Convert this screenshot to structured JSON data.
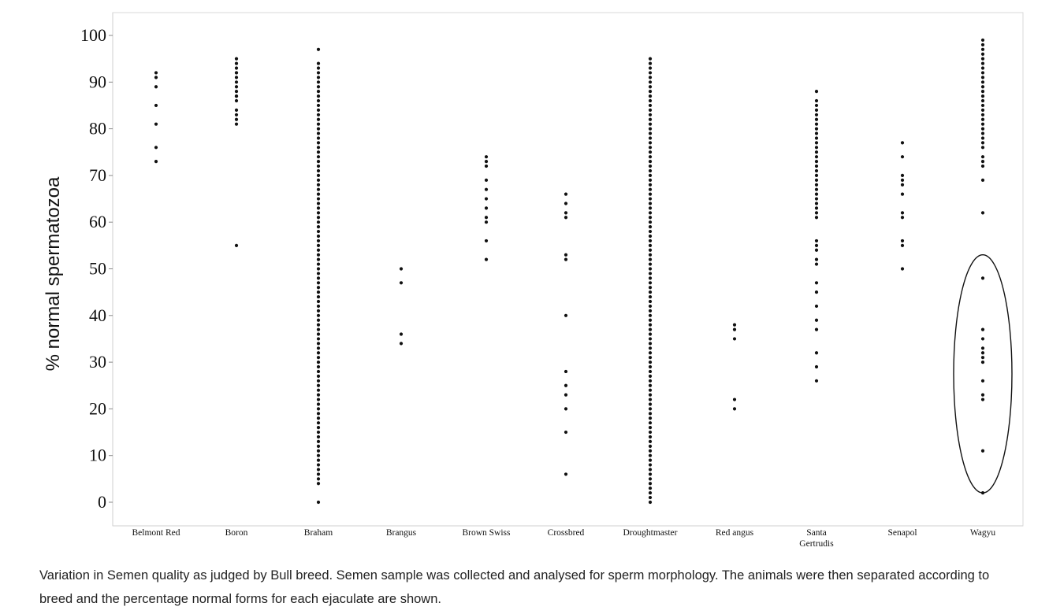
{
  "chart_data": {
    "type": "scatter",
    "style": "dot-strip",
    "ylabel": "% normal spermatozoa",
    "xlabel": "",
    "ylim": [
      0,
      100
    ],
    "yticks": [
      "0",
      "10",
      "20",
      "30",
      "40",
      "50",
      "60",
      "70",
      "80",
      "90",
      "100"
    ],
    "grid": false,
    "point_color": "#111111",
    "categories": [
      {
        "label": "Belmont Red",
        "values": [
          92,
          91,
          89,
          85,
          81,
          76,
          73
        ]
      },
      {
        "label": "Boron",
        "values": [
          95,
          94,
          93,
          92,
          92,
          91,
          90,
          89,
          88,
          87,
          87,
          86,
          84,
          83,
          82,
          81,
          55
        ]
      },
      {
        "label": "Braham",
        "values": [
          97,
          94,
          93,
          92,
          91,
          90,
          89,
          88,
          87,
          86,
          85,
          84,
          83,
          82,
          81,
          80,
          79,
          78,
          77,
          76,
          75,
          74,
          73,
          72,
          71,
          70,
          69,
          68,
          67,
          66,
          65,
          64,
          63,
          62,
          61,
          60,
          59,
          58,
          57,
          56,
          55,
          54,
          53,
          52,
          51,
          50,
          49,
          48,
          47,
          46,
          45,
          44,
          43,
          42,
          41,
          40,
          39,
          38,
          37,
          36,
          35,
          34,
          33,
          32,
          31,
          30,
          29,
          28,
          27,
          26,
          25,
          24,
          23,
          22,
          21,
          20,
          19,
          18,
          17,
          16,
          15,
          14,
          13,
          12,
          11,
          10,
          9,
          8,
          7,
          6,
          5,
          4,
          0
        ]
      },
      {
        "label": "Brangus",
        "values": [
          50,
          47,
          36,
          34
        ]
      },
      {
        "label": "Brown Swiss",
        "values": [
          74,
          73,
          72,
          69,
          67,
          65,
          63,
          61,
          60,
          56,
          52
        ]
      },
      {
        "label": "Crossbred",
        "values": [
          66,
          64,
          62,
          61,
          53,
          52,
          40,
          28,
          25,
          23,
          20,
          15,
          6
        ]
      },
      {
        "label": "Droughtmaster",
        "values": [
          95,
          94,
          93,
          92,
          91,
          90,
          89,
          88,
          87,
          86,
          85,
          84,
          83,
          82,
          81,
          80,
          79,
          78,
          77,
          76,
          75,
          74,
          73,
          72,
          71,
          70,
          69,
          68,
          67,
          66,
          65,
          64,
          63,
          62,
          61,
          60,
          59,
          58,
          57,
          56,
          55,
          54,
          53,
          52,
          51,
          50,
          49,
          48,
          47,
          46,
          45,
          44,
          43,
          42,
          41,
          40,
          39,
          38,
          37,
          36,
          35,
          34,
          33,
          32,
          31,
          30,
          29,
          28,
          27,
          26,
          25,
          24,
          23,
          22,
          21,
          20,
          19,
          18,
          17,
          16,
          15,
          14,
          13,
          12,
          11,
          10,
          9,
          8,
          7,
          6,
          5,
          4,
          3,
          2,
          1,
          0
        ]
      },
      {
        "label": "Red angus",
        "values": [
          38,
          37,
          35,
          22,
          20
        ]
      },
      {
        "label": "Santa Gertrudis",
        "values": [
          88,
          86,
          85,
          84,
          83,
          82,
          81,
          80,
          79,
          78,
          77,
          76,
          75,
          74,
          73,
          72,
          71,
          70,
          69,
          68,
          67,
          66,
          65,
          64,
          63,
          62,
          61,
          56,
          55,
          54,
          52,
          51,
          47,
          45,
          42,
          39,
          37,
          32,
          29,
          26
        ]
      },
      {
        "label": "Senapol",
        "values": [
          77,
          74,
          70,
          69,
          68,
          66,
          62,
          61,
          56,
          55,
          50
        ]
      },
      {
        "label": "Wagyu",
        "values": [
          99,
          98,
          97,
          96,
          95,
          94,
          93,
          92,
          91,
          90,
          89,
          88,
          87,
          86,
          85,
          84,
          83,
          82,
          81,
          80,
          79,
          78,
          77,
          76,
          74,
          73,
          72,
          69,
          62,
          48,
          37,
          35,
          33,
          32,
          31,
          30,
          26,
          23,
          22,
          11,
          2
        ]
      }
    ],
    "annotations": [
      {
        "type": "ellipse",
        "category": "Wagyu",
        "y_range": [
          2,
          53
        ],
        "label": ""
      }
    ]
  },
  "caption": "Variation in Semen quality as judged by Bull breed. Semen sample was collected and analysed for sperm morphology. The animals were then separated according to breed and the percentage normal forms for each ejaculate are shown."
}
